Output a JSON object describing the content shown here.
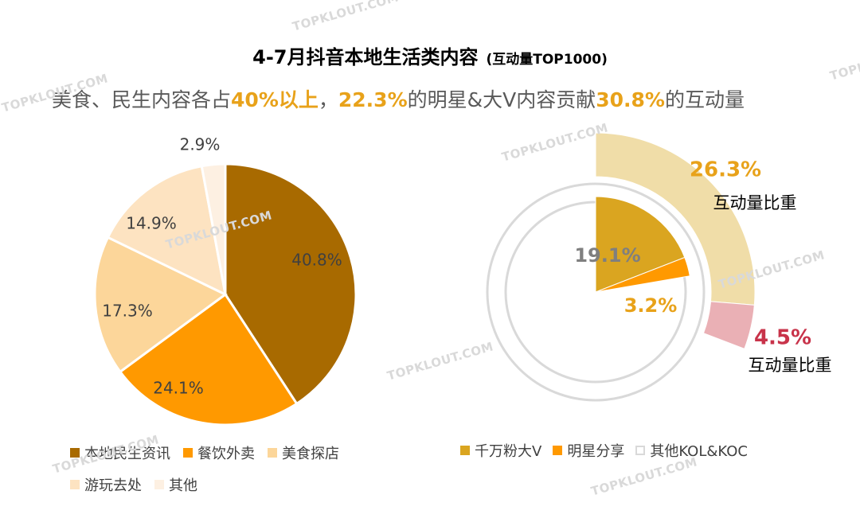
{
  "header": {
    "title": "4-7月抖音本地生活类内容",
    "title_suffix": "(互动量TOP1000)",
    "subtitle_parts": [
      {
        "text": "美食、民生内容各占",
        "highlight": false
      },
      {
        "text": "40%以上",
        "highlight": true
      },
      {
        "text": "，",
        "highlight": false
      },
      {
        "text": "22.3%",
        "highlight": true
      },
      {
        "text": "的明星&大V内容贡献",
        "highlight": false
      },
      {
        "text": "30.8%",
        "highlight": true
      },
      {
        "text": "的互动量",
        "highlight": false
      }
    ]
  },
  "watermark": "TOPKLOUT.COM",
  "colors": {
    "highlight": "#E8A21A",
    "local_news": "#A86A00",
    "catering": "#FF9900",
    "food_explore": "#FCD69A",
    "travel": "#FDE3C1",
    "other": "#FDF0E2",
    "big_v_inner": "#DAA520",
    "big_v_outer": "#F0DDA8",
    "star_inner": "#FF9900",
    "star_outer": "#EAB0B5",
    "ring_gray": "#D9D9D9",
    "label_gold": "#E8A21A",
    "label_red": "#C8334A"
  },
  "chart_data": [
    {
      "type": "pie",
      "title": "",
      "categories": [
        "本地民生资讯",
        "餐饮外卖",
        "美食探店",
        "游玩去处",
        "其他"
      ],
      "values": [
        40.8,
        24.1,
        17.3,
        14.9,
        2.9
      ],
      "labels": [
        "40.8%",
        "24.1%",
        "17.3%",
        "14.9%",
        "2.9%"
      ],
      "legend": "bottom"
    },
    {
      "type": "donut",
      "title": "",
      "content_share": [
        {
          "name": "千万粉大V",
          "value": 19.1,
          "label": "19.1%"
        },
        {
          "name": "明星分享",
          "value": 3.2,
          "label": "3.2%"
        },
        {
          "name": "其他KOL&KOC",
          "value": 77.7
        }
      ],
      "interaction_share": [
        {
          "name": "千万粉大V",
          "value": 26.3,
          "label": "26.3%",
          "caption": "互动量比重"
        },
        {
          "name": "明星分享",
          "value": 4.5,
          "label": "4.5%",
          "caption": "互动量比重"
        }
      ],
      "legend_items": [
        "千万粉大V",
        "明星分享",
        "其他KOL&KOC"
      ],
      "legend": "bottom"
    }
  ]
}
